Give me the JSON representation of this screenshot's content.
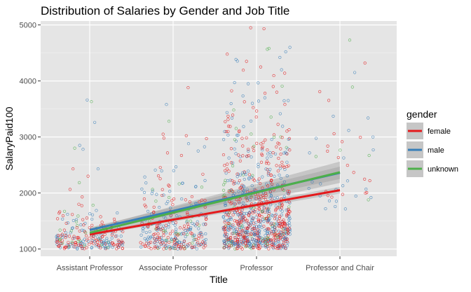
{
  "chart_data": {
    "type": "scatter",
    "title": "Distribution of Salaries by Gender and Job Title",
    "xlabel": "Title",
    "ylabel": "SalaryPaid100",
    "categories": [
      "Assistant Professor",
      "Associate Professor",
      "Professor",
      "Professor and Chair"
    ],
    "y_ticks": [
      1000,
      2000,
      3000,
      4000,
      5000
    ],
    "ylim": [
      870,
      5070
    ],
    "grid": true,
    "background": "#e5e5e5",
    "legend": {
      "title": "gender",
      "position": "right",
      "entries": [
        {
          "label": "female",
          "color": "#e41a1c"
        },
        {
          "label": "male",
          "color": "#377eb8"
        },
        {
          "label": "unknown",
          "color": "#4daf4a"
        }
      ]
    },
    "trend_lines": [
      {
        "name": "female",
        "color": "#e41a1c",
        "x": [
          1,
          4
        ],
        "y": [
          1260,
          2050
        ],
        "band": 60
      },
      {
        "name": "male",
        "color": "#377eb8",
        "x": [
          1,
          4
        ],
        "y": [
          1340,
          2360
        ],
        "band": 110
      },
      {
        "name": "unknown",
        "color": "#4daf4a",
        "x": [
          1,
          4
        ],
        "y": [
          1290,
          2370
        ],
        "band": 190
      }
    ],
    "point_groups": [
      {
        "category": "Assistant Professor",
        "count": 230,
        "y_min": 1000,
        "spread": 230,
        "share": [
          0.45,
          0.45,
          0.1
        ],
        "outliers": [
          [
            0.97,
            3660
          ],
          [
            1.02,
            3630
          ],
          [
            1.06,
            3260
          ],
          [
            0.82,
            2800
          ],
          [
            0.88,
            2850
          ],
          [
            0.92,
            2780
          ],
          [
            0.8,
            2430
          ],
          [
            0.98,
            2300
          ],
          [
            1.1,
            2430
          ]
        ]
      },
      {
        "category": "Associate Professor",
        "count": 320,
        "y_min": 1000,
        "spread": 420,
        "share": [
          0.45,
          0.45,
          0.1
        ],
        "outliers": [
          [
            1.92,
            3580
          ],
          [
            1.95,
            3280
          ],
          [
            2.18,
            3880
          ],
          [
            2.4,
            2970
          ],
          [
            1.88,
            3050
          ],
          [
            2.1,
            2670
          ],
          [
            2.3,
            2750
          ]
        ]
      },
      {
        "category": "Professor",
        "count": 900,
        "y_min": 1000,
        "spread": 760,
        "share": [
          0.45,
          0.45,
          0.1
        ],
        "outliers": [
          [
            2.93,
            4950
          ],
          [
            3.15,
            4580
          ],
          [
            3.35,
            4520
          ],
          [
            3.4,
            4600
          ],
          [
            3.28,
            4420
          ],
          [
            2.88,
            4350
          ],
          [
            3.05,
            4250
          ],
          [
            3.3,
            4200
          ],
          [
            3.2,
            3900
          ],
          [
            2.9,
            3950
          ],
          [
            3.1,
            3700
          ],
          [
            3.38,
            3650
          ],
          [
            2.95,
            3600
          ]
        ]
      },
      {
        "category": "Professor and Chair",
        "count": 45,
        "y_min": 1700,
        "spread": 700,
        "share": [
          0.45,
          0.45,
          0.1
        ],
        "outliers": [
          [
            4.3,
            4320
          ],
          [
            4.15,
            3890
          ],
          [
            3.92,
            3370
          ],
          [
            4.35,
            2670
          ]
        ]
      }
    ]
  }
}
